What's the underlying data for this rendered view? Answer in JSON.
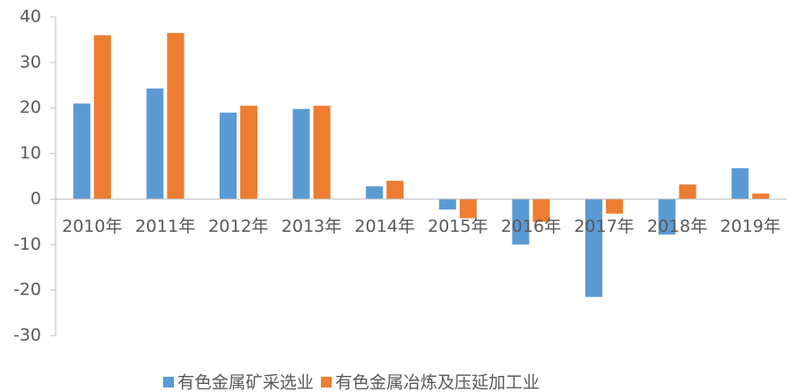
{
  "chart_data": {
    "type": "bar",
    "categories": [
      "2010年",
      "2011年",
      "2012年",
      "2013年",
      "2014年",
      "2015年",
      "2016年",
      "2017年",
      "2018年",
      "2019年"
    ],
    "series": [
      {
        "name": "有色金属矿采选业",
        "color": "#5b9bd5",
        "values": [
          21,
          24.3,
          19,
          19.8,
          2.8,
          -2.3,
          -10,
          -21.5,
          -7.8,
          6.8
        ]
      },
      {
        "name": "有色金属冶炼及压延加工业",
        "color": "#ed7d31",
        "values": [
          36,
          36.5,
          20.5,
          20.5,
          4,
          -4.2,
          -5,
          -3.2,
          3.2,
          1.2
        ]
      }
    ],
    "ylim": [
      -30,
      40
    ],
    "yticks": [
      -30,
      -20,
      -10,
      0,
      10,
      20,
      30,
      40
    ],
    "legend": "bottom"
  }
}
